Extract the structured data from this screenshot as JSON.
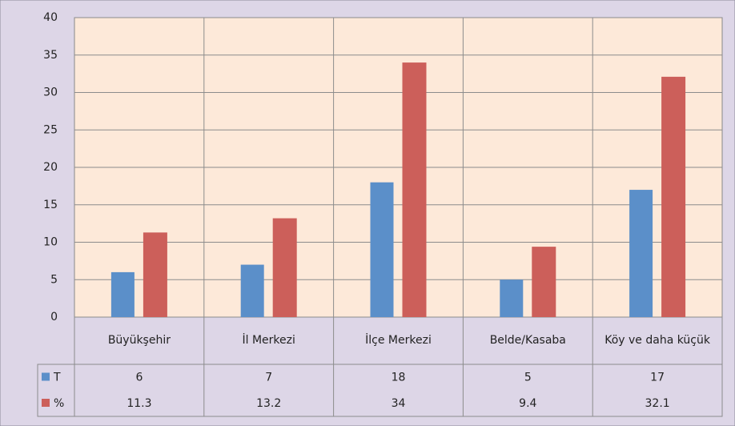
{
  "chart_data": {
    "type": "bar",
    "categories": [
      "Büyükşehir",
      "İl Merkezi",
      "İlçe Merkezi",
      "Belde/Kasaba",
      "Köy ve daha küçük"
    ],
    "series": [
      {
        "name": "T",
        "color": "#5b8fc9",
        "values": [
          6,
          7,
          18,
          5,
          17
        ]
      },
      {
        "name": "%",
        "color": "#cc5f5a",
        "values": [
          11.3,
          13.2,
          34,
          9.4,
          32.1
        ]
      }
    ],
    "ylim": [
      0,
      40
    ],
    "yticks": [
      0,
      5,
      10,
      15,
      20,
      25,
      30,
      35,
      40
    ],
    "grid": true,
    "data_table": true
  }
}
